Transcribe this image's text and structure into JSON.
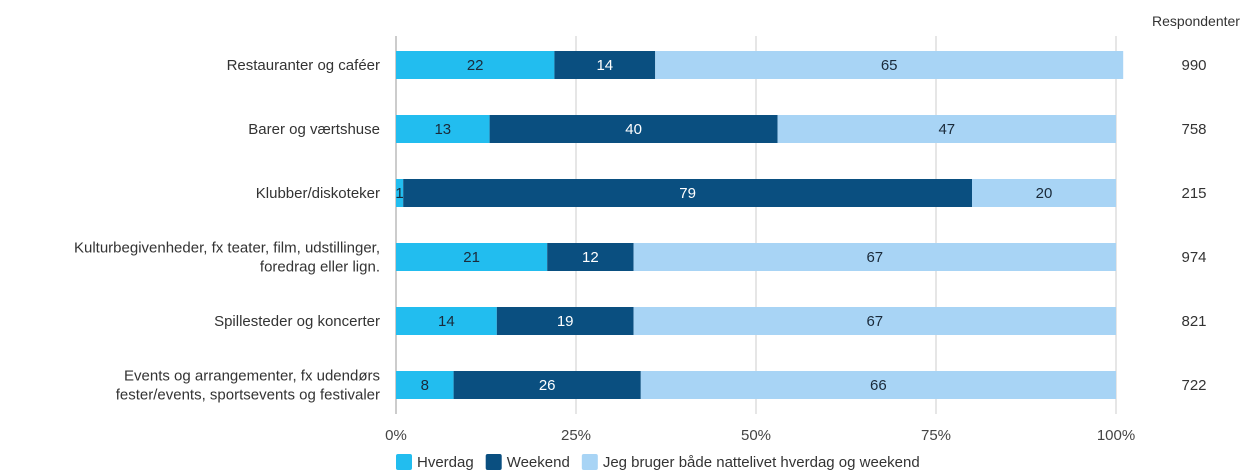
{
  "chart_data": {
    "type": "bar",
    "orientation": "horizontal",
    "stacked": true,
    "categories": [
      [
        "Restauranter og caféer"
      ],
      [
        "Barer og værtshuse"
      ],
      [
        "Klubber/diskoteker"
      ],
      [
        "Kulturbegivenheder, fx teater, film, udstillinger,",
        "foredrag eller lign."
      ],
      [
        "Spillesteder og koncerter"
      ],
      [
        "Events og arrangementer, fx udendørs",
        "fester/events, sportsevents og festivaler"
      ]
    ],
    "series": [
      {
        "name": "Hverdag",
        "color": "#22bdef",
        "label_color": "#1a2a3a",
        "values": [
          22,
          13,
          1,
          21,
          14,
          8
        ]
      },
      {
        "name": "Weekend",
        "color": "#0a4f80",
        "label_color": "#ffffff",
        "values": [
          14,
          40,
          79,
          12,
          19,
          26
        ]
      },
      {
        "name": "Jeg bruger både nattelivet hverdag og weekend",
        "color": "#a8d4f5",
        "label_color": "#1a2a3a",
        "values": [
          65,
          47,
          20,
          67,
          67,
          66
        ]
      }
    ],
    "x_ticks": [
      "0%",
      "25%",
      "50%",
      "75%",
      "100%"
    ],
    "xlim": [
      0,
      100
    ],
    "grid": true,
    "legend_position": "bottom",
    "respondents": {
      "header": "Respondenter",
      "values": [
        "990",
        "758",
        "215",
        "974",
        "821",
        "722"
      ]
    }
  }
}
